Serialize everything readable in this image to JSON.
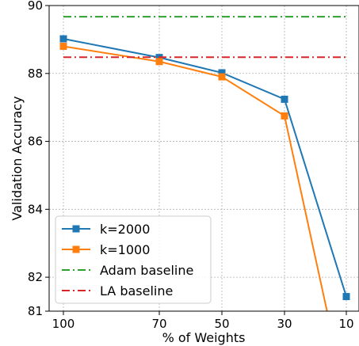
{
  "chart_data": {
    "type": "line",
    "xlabel": "% of Weights",
    "ylabel": "Validation Accuracy",
    "categories": [
      "100",
      "70",
      "50",
      "30",
      "10"
    ],
    "ylim": [
      81,
      90
    ],
    "yticks": [
      81,
      82,
      84,
      86,
      88,
      90
    ],
    "grid": true,
    "legend_position": "lower-left",
    "series": [
      {
        "name": "k=2000",
        "color": "#1f77b4",
        "marker": "square",
        "style": "solid",
        "x_index": [
          0,
          1,
          2,
          3,
          4
        ],
        "values": [
          89.02,
          88.47,
          88.02,
          87.24,
          81.43
        ]
      },
      {
        "name": "k=1000",
        "color": "#ff7f0e",
        "marker": "square",
        "style": "solid",
        "x_index": [
          0,
          1,
          2,
          3,
          3.7
        ],
        "values": [
          88.8,
          88.35,
          87.9,
          86.75,
          80.9
        ]
      },
      {
        "name": "Adam baseline",
        "color": "#2ca02c",
        "style": "dashdot",
        "hline": 89.67
      },
      {
        "name": "LA baseline",
        "color": "#d62728",
        "style": "dashdot",
        "hline": 88.48
      }
    ]
  }
}
